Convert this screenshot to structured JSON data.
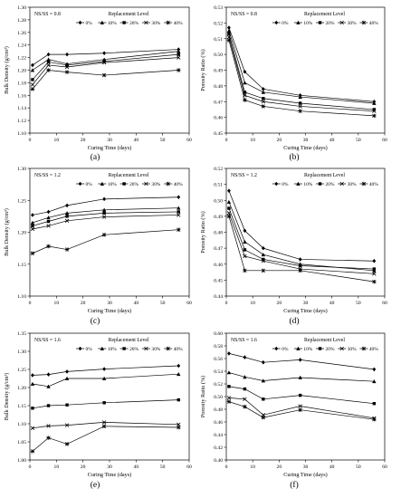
{
  "figure": {
    "panel_labels": [
      "(a)",
      "(b)",
      "(c)",
      "(d)",
      "(e)",
      "(f)"
    ]
  },
  "legend_markers": [
    "diamond",
    "triangle",
    "square",
    "x",
    "star"
  ],
  "chart_data": [
    {
      "type": "line",
      "panel": "(a)",
      "annotation": "NS/SS = 0.8",
      "legend_title": "Replacement Level",
      "xlabel": "Curing Time (days)",
      "ylabel": "Bulk Density (g/cm³)",
      "xlim": [
        0,
        60
      ],
      "ylim": [
        1.1,
        1.3
      ],
      "xticks": [
        0,
        10,
        20,
        30,
        40,
        50,
        60
      ],
      "yticks": [
        1.1,
        1.12,
        1.14,
        1.16,
        1.18,
        1.2,
        1.22,
        1.24,
        1.26,
        1.28,
        1.3
      ],
      "ytick_decimals": 2,
      "x": [
        1,
        7,
        14,
        28,
        56
      ],
      "series": [
        {
          "name": "0%",
          "values": [
            1.208,
            1.225,
            1.225,
            1.227,
            1.233
          ]
        },
        {
          "name": "10%",
          "values": [
            1.2,
            1.217,
            1.21,
            1.217,
            1.23
          ]
        },
        {
          "name": "20%",
          "values": [
            1.185,
            1.213,
            1.208,
            1.214,
            1.225
          ]
        },
        {
          "name": "30%",
          "values": [
            1.177,
            1.208,
            1.205,
            1.212,
            1.22
          ]
        },
        {
          "name": "40%",
          "values": [
            1.17,
            1.2,
            1.197,
            1.192,
            1.2
          ]
        }
      ]
    },
    {
      "type": "line",
      "panel": "(b)",
      "annotation": "NS/SS = 0.8",
      "legend_title": "Replacement Level",
      "xlabel": "Curing Time (days)",
      "ylabel": "Porosity Ratio (%)",
      "xlim": [
        0,
        60
      ],
      "ylim": [
        0.45,
        0.53
      ],
      "xticks": [
        0,
        10,
        20,
        30,
        40,
        50,
        60
      ],
      "yticks": [
        0.45,
        0.46,
        0.47,
        0.48,
        0.49,
        0.5,
        0.51,
        0.52,
        0.53
      ],
      "ytick_decimals": 2,
      "x": [
        1,
        7,
        14,
        28,
        56
      ],
      "series": [
        {
          "name": "0%",
          "values": [
            0.517,
            0.489,
            0.478,
            0.474,
            0.47
          ]
        },
        {
          "name": "10%",
          "values": [
            0.515,
            0.482,
            0.476,
            0.473,
            0.469
          ]
        },
        {
          "name": "20%",
          "values": [
            0.513,
            0.476,
            0.472,
            0.469,
            0.465
          ]
        },
        {
          "name": "30%",
          "values": [
            0.511,
            0.474,
            0.47,
            0.467,
            0.464
          ]
        },
        {
          "name": "40%",
          "values": [
            0.509,
            0.471,
            0.467,
            0.464,
            0.461
          ]
        }
      ]
    },
    {
      "type": "line",
      "panel": "(c)",
      "annotation": "NS/SS = 1.2",
      "legend_title": "Replacement Level",
      "xlabel": "Curing Time (days)",
      "ylabel": "Bulk Density (g/cm³)",
      "xlim": [
        0,
        60
      ],
      "ylim": [
        1.1,
        1.3
      ],
      "xticks": [
        0,
        10,
        20,
        30,
        40,
        50,
        60
      ],
      "yticks": [
        1.1,
        1.15,
        1.2,
        1.25,
        1.3
      ],
      "ytick_decimals": 2,
      "x": [
        1,
        7,
        14,
        28,
        56
      ],
      "series": [
        {
          "name": "0%",
          "values": [
            1.227,
            1.232,
            1.242,
            1.252,
            1.255
          ]
        },
        {
          "name": "10%",
          "values": [
            1.215,
            1.223,
            1.23,
            1.235,
            1.238
          ]
        },
        {
          "name": "20%",
          "values": [
            1.21,
            1.217,
            1.225,
            1.23,
            1.232
          ]
        },
        {
          "name": "30%",
          "values": [
            1.205,
            1.21,
            1.218,
            1.224,
            1.227
          ]
        },
        {
          "name": "40%",
          "values": [
            1.167,
            1.178,
            1.173,
            1.196,
            1.204
          ]
        }
      ]
    },
    {
      "type": "line",
      "panel": "(d)",
      "annotation": "NS/SS = 1.2",
      "legend_title": "Replacement Level",
      "xlabel": "Curing Time (days)",
      "ylabel": "Porosity Ratio (%)",
      "xlim": [
        0,
        60
      ],
      "ylim": [
        0.44,
        0.52
      ],
      "xticks": [
        0,
        10,
        20,
        30,
        40,
        50,
        60
      ],
      "yticks": [
        0.44,
        0.45,
        0.46,
        0.47,
        0.48,
        0.49,
        0.5,
        0.51,
        0.52
      ],
      "ytick_decimals": 2,
      "x": [
        1,
        7,
        14,
        28,
        56
      ],
      "series": [
        {
          "name": "0%",
          "values": [
            0.506,
            0.481,
            0.47,
            0.463,
            0.462
          ]
        },
        {
          "name": "10%",
          "values": [
            0.499,
            0.474,
            0.466,
            0.46,
            0.456
          ]
        },
        {
          "name": "20%",
          "values": [
            0.495,
            0.469,
            0.463,
            0.459,
            0.457
          ]
        },
        {
          "name": "30%",
          "values": [
            0.492,
            0.465,
            0.462,
            0.457,
            0.454
          ]
        },
        {
          "name": "40%",
          "values": [
            0.49,
            0.456,
            0.456,
            0.456,
            0.449
          ]
        }
      ]
    },
    {
      "type": "line",
      "panel": "(e)",
      "annotation": "NS/SS = 1.6",
      "legend_title": "Replacement Level",
      "xlabel": "Curing Time (days)",
      "ylabel": "Bulk Density (g/cm³)",
      "xlim": [
        0,
        60
      ],
      "ylim": [
        1.0,
        1.35
      ],
      "xticks": [
        0,
        10,
        20,
        30,
        40,
        50,
        60
      ],
      "yticks": [
        1.0,
        1.05,
        1.1,
        1.15,
        1.2,
        1.25,
        1.3,
        1.35
      ],
      "ytick_decimals": 2,
      "x": [
        1,
        7,
        14,
        28,
        56
      ],
      "series": [
        {
          "name": "0%",
          "values": [
            1.234,
            1.236,
            1.244,
            1.251,
            1.26
          ]
        },
        {
          "name": "10%",
          "values": [
            1.21,
            1.203,
            1.225,
            1.225,
            1.237
          ]
        },
        {
          "name": "20%",
          "values": [
            1.143,
            1.15,
            1.152,
            1.158,
            1.166
          ]
        },
        {
          "name": "30%",
          "values": [
            1.088,
            1.094,
            1.096,
            1.104,
            1.098
          ]
        },
        {
          "name": "40%",
          "values": [
            1.024,
            1.061,
            1.044,
            1.093,
            1.09
          ]
        }
      ]
    },
    {
      "type": "line",
      "panel": "(f)",
      "annotation": "NS/SS = 1.6",
      "legend_title": "Replacement Level",
      "xlabel": "Curing Time (days)",
      "ylabel": "Porosity Ratio (%)",
      "xlim": [
        0,
        60
      ],
      "ylim": [
        0.4,
        0.6
      ],
      "xticks": [
        0,
        10,
        20,
        30,
        40,
        50,
        60
      ],
      "yticks": [
        0.4,
        0.42,
        0.44,
        0.46,
        0.48,
        0.5,
        0.52,
        0.54,
        0.56,
        0.58,
        0.6
      ],
      "ytick_decimals": 2,
      "x": [
        1,
        7,
        14,
        28,
        56
      ],
      "series": [
        {
          "name": "0%",
          "values": [
            0.568,
            0.562,
            0.554,
            0.558,
            0.543
          ]
        },
        {
          "name": "10%",
          "values": [
            0.538,
            0.531,
            0.525,
            0.53,
            0.524
          ]
        },
        {
          "name": "20%",
          "values": [
            0.516,
            0.512,
            0.496,
            0.502,
            0.489
          ]
        },
        {
          "name": "30%",
          "values": [
            0.498,
            0.496,
            0.471,
            0.485,
            0.466
          ]
        },
        {
          "name": "40%",
          "values": [
            0.492,
            0.484,
            0.467,
            0.479,
            0.464
          ]
        }
      ]
    }
  ]
}
